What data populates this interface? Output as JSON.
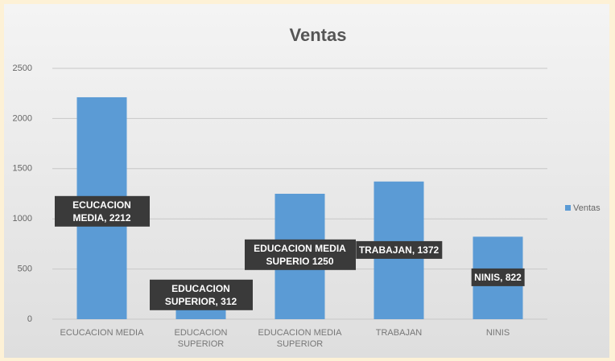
{
  "chart_data": {
    "type": "bar",
    "title": "Ventas",
    "categories": [
      "ECUCACION MEDIA",
      "EDUCACION SUPERIOR",
      "EDUCACION MEDIA SUPERIOR",
      "TRABAJAN",
      "NINIS"
    ],
    "series": [
      {
        "name": "Ventas",
        "color": "#5b9bd5",
        "values": [
          2212,
          312,
          1250,
          1372,
          822
        ],
        "value_labels": [
          "ECUCACION MEDIA, 2212",
          "EDUCACION SUPERIOR, 312",
          "EDUCACION MEDIA SUPERIO 1250",
          "TRABAJAN, 1372",
          "NINIS, 822"
        ]
      }
    ],
    "ylim": [
      0,
      2500
    ],
    "yticks": [
      0,
      500,
      1000,
      1500,
      2000,
      2500
    ],
    "grid": true,
    "legend": "right"
  }
}
